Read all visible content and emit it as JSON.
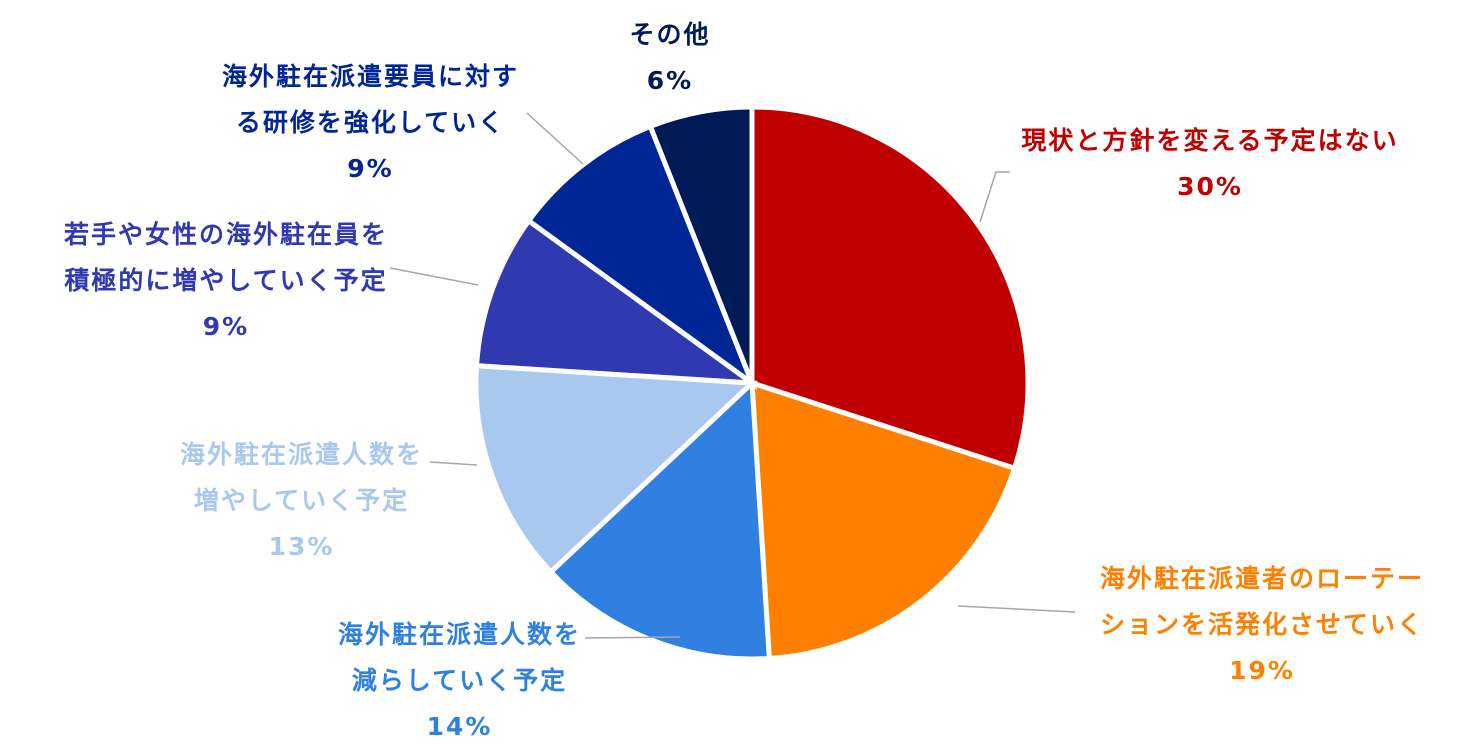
{
  "chart_data": {
    "type": "pie",
    "categories": [
      "現状と方針を変える予定はない",
      "海外駐在派遣者のローテーションを活発化させていく",
      "海外駐在派遣人数を減らしていく予定",
      "海外駐在派遣人数を増やしていく予定",
      "若手や女性の海外駐在員を積極的に増やしていく予定",
      "海外駐在派遣要員に対する研修を強化していく",
      "その他"
    ],
    "values": [
      30,
      19,
      14,
      13,
      9,
      9,
      6
    ],
    "value_labels": [
      "30%",
      "19%",
      "14%",
      "13%",
      "9%",
      "9%",
      "6%"
    ],
    "colors": [
      "#c00000",
      "#ff8000",
      "#2f80e0",
      "#a9c8ee",
      "#3039b0",
      "#002594",
      "#001a57"
    ]
  }
}
